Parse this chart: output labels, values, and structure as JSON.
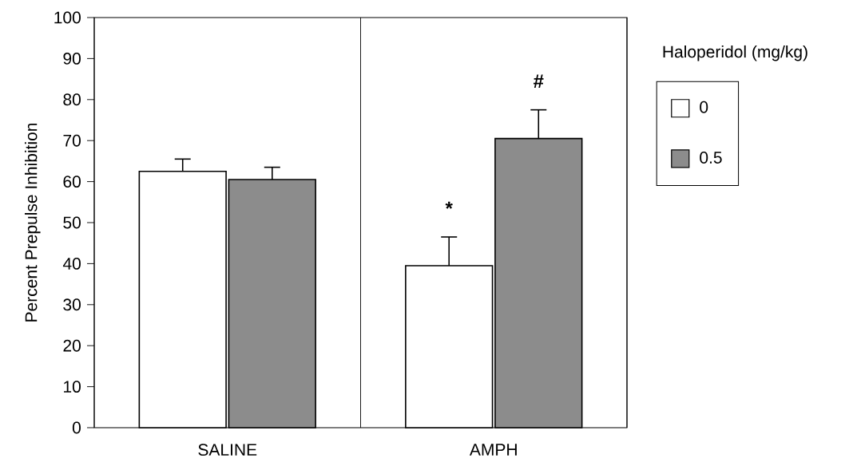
{
  "chart_data": {
    "type": "bar",
    "ylabel": "Percent Prepulse Inhibition",
    "legend_title": "Haloperidol (mg/kg)",
    "categories": [
      "SALINE",
      "AMPH"
    ],
    "series": [
      {
        "name": "0",
        "color": "#ffffff",
        "values": [
          62.5,
          39.5
        ],
        "errors": [
          3,
          7
        ]
      },
      {
        "name": "0.5",
        "color": "#8c8c8c",
        "values": [
          60.5,
          70.5
        ],
        "errors": [
          3,
          7
        ]
      }
    ],
    "ylim": [
      0,
      100
    ],
    "yticks": [
      0,
      10,
      20,
      30,
      40,
      50,
      60,
      70,
      80,
      90,
      100
    ],
    "legend": "right",
    "annotations": [
      "*",
      "#"
    ]
  }
}
